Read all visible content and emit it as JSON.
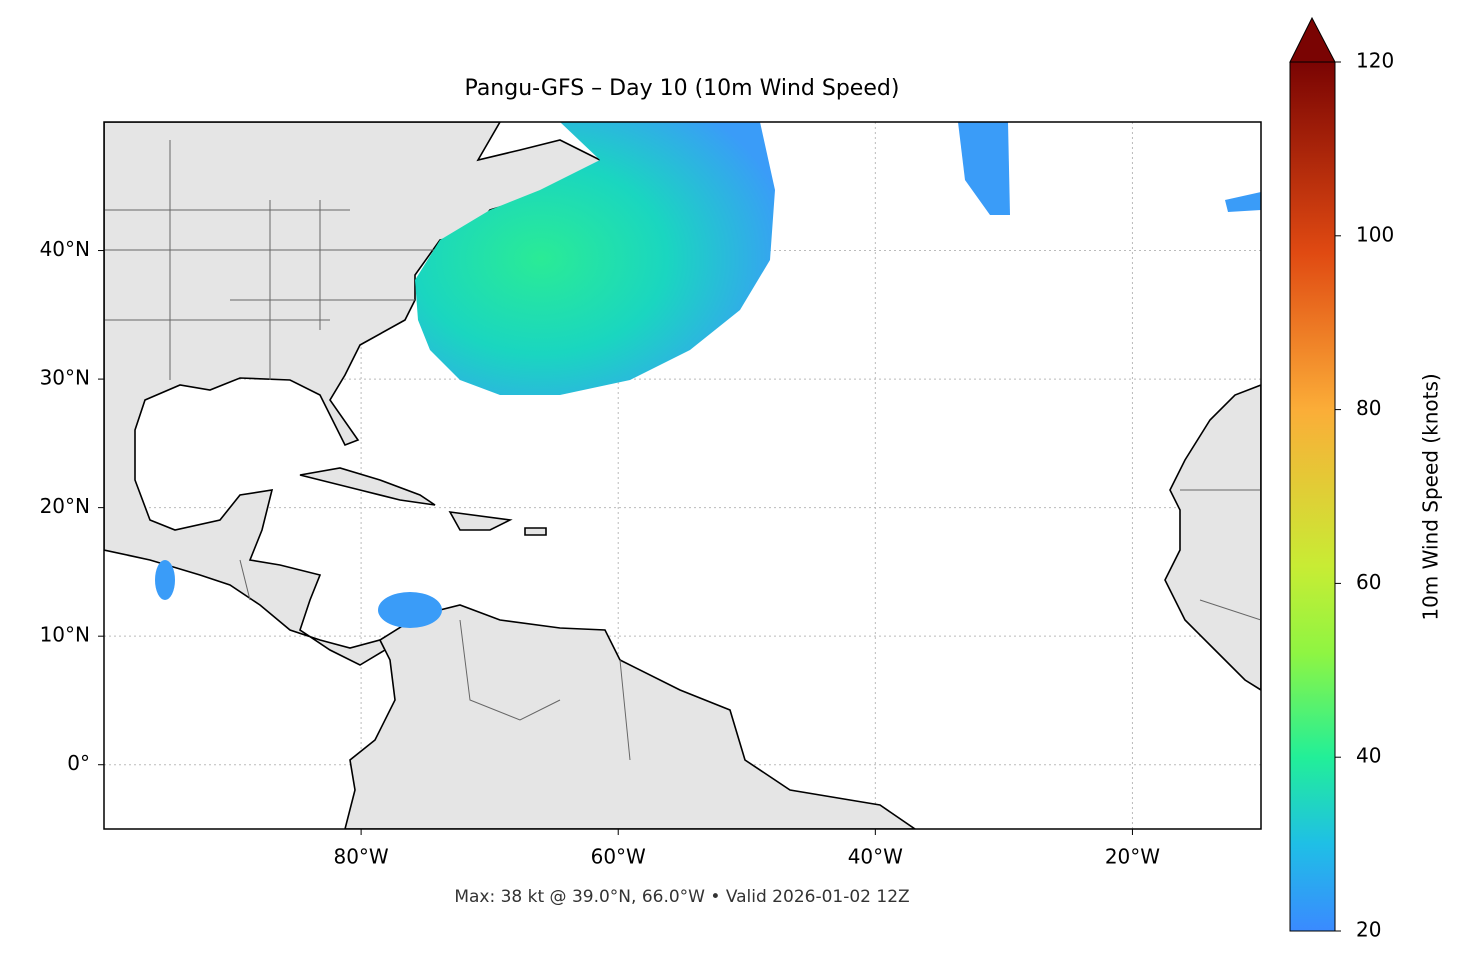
{
  "title": "Pangu-GFS – Day 10 (10m Wind Speed)",
  "map": {
    "lonlim": [
      -100,
      -10
    ],
    "latlim": [
      -5,
      50
    ],
    "xticks": [
      {
        "value": -80,
        "label": "80°W"
      },
      {
        "value": -60,
        "label": "60°W"
      },
      {
        "value": -40,
        "label": "40°W"
      },
      {
        "value": -20,
        "label": "20°W"
      }
    ],
    "yticks": [
      {
        "value": 0,
        "label": "0°"
      },
      {
        "value": 10,
        "label": "10°N"
      },
      {
        "value": 20,
        "label": "20°N"
      },
      {
        "value": 30,
        "label": "30°N"
      },
      {
        "value": 40,
        "label": "40°N"
      }
    ]
  },
  "colorbar": {
    "label": "10m Wind Speed (knots)",
    "lim": [
      20,
      120
    ],
    "ticks": [
      20,
      40,
      60,
      80,
      100,
      120
    ]
  },
  "footnote": "Max: 38 kt @ 39.0°N, 66.0°W • Valid 2026-01-02 12Z"
}
